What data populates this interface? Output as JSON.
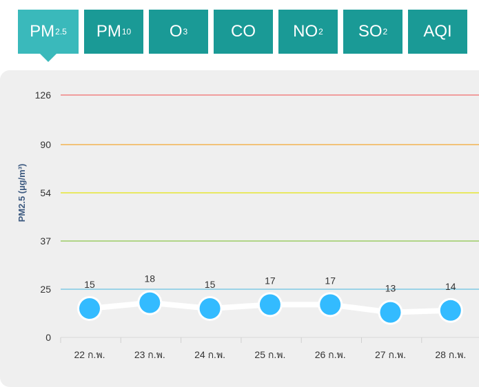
{
  "tabs": [
    {
      "base": "PM",
      "sub": "2.5",
      "name": "tab-pm25"
    },
    {
      "base": "PM",
      "sub": "10",
      "name": "tab-pm10"
    },
    {
      "base": "O",
      "sub": "3",
      "name": "tab-o3"
    },
    {
      "base": "CO",
      "sub": "",
      "name": "tab-co"
    },
    {
      "base": "NO",
      "sub": "2",
      "name": "tab-no2"
    },
    {
      "base": "SO",
      "sub": "2",
      "name": "tab-so2"
    },
    {
      "base": "AQI",
      "sub": "",
      "name": "tab-aqi"
    }
  ],
  "active_tab": 0,
  "chart_data": {
    "type": "line",
    "ylabel": "PM2.5 (µg/m³)",
    "categories": [
      "22 ก.พ.",
      "23 ก.พ.",
      "24 ก.พ.",
      "25 ก.พ.",
      "26 ก.พ.",
      "27 ก.พ.",
      "28 ก.พ."
    ],
    "values": [
      15,
      18,
      15,
      17,
      17,
      13,
      14
    ],
    "yticks": [
      0,
      25,
      37,
      54,
      90,
      126
    ],
    "threshold_lines": [
      {
        "value": 25,
        "color": "#7ec8e3"
      },
      {
        "value": 37,
        "color": "#9ccc65"
      },
      {
        "value": 54,
        "color": "#e6e632"
      },
      {
        "value": 90,
        "color": "#f4b350"
      },
      {
        "value": 126,
        "color": "#f08080"
      }
    ],
    "point_color": "#33bbff",
    "line_color": "#ffffff"
  }
}
